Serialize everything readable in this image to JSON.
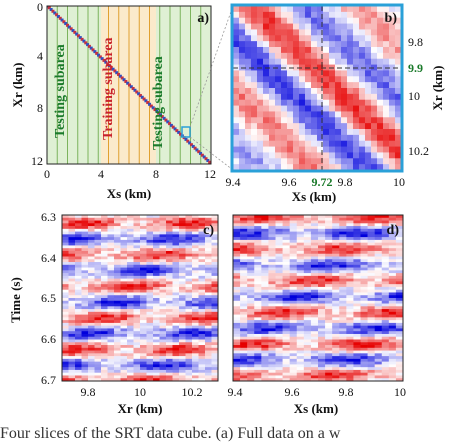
{
  "figure": {
    "caption": "Four slices of the SRT data cube. (a) Full data on a w"
  },
  "chart_data": [
    {
      "type": "heatmap",
      "panel_label": "a)",
      "xlabel": "Xs (km)",
      "ylabel": "Xr (km)",
      "xlim": [
        0,
        12
      ],
      "ylim": [
        0,
        12
      ],
      "xticks": [
        "0",
        "4",
        "8",
        "12"
      ],
      "yticks": [
        "0",
        "4",
        "8",
        "12"
      ],
      "subareas": [
        {
          "label": "Testing subarea",
          "color": "#1a7a2a"
        },
        {
          "label": "Training subarea",
          "color": "#c8202a"
        },
        {
          "label": "Testing subarea",
          "color": "#1a7a2a"
        }
      ]
    },
    {
      "type": "heatmap",
      "panel_label": "b)",
      "xlabel": "Xs (km)",
      "ylabel": "Xr (km)",
      "xlim": [
        9.4,
        10
      ],
      "ylim": [
        9.6,
        10.3
      ],
      "xticks": [
        "9.4",
        "9.6",
        "9.72",
        "9.8",
        "10"
      ],
      "yticks": [
        "9.8",
        "9.9",
        "10",
        "10.2"
      ],
      "highlight_x": "9.72",
      "highlight_y": "9.9"
    },
    {
      "type": "heatmap",
      "panel_label": "c)",
      "xlabel": "Xr (km)",
      "ylabel": "Time (s)",
      "xlim": [
        9.7,
        10.3
      ],
      "ylim": [
        6.7,
        6.3
      ],
      "xticks": [
        "9.8",
        "10",
        "10.2"
      ],
      "yticks": [
        "6.3",
        "6.4",
        "6.5",
        "6.6",
        "6.7"
      ]
    },
    {
      "type": "heatmap",
      "panel_label": "d)",
      "xlabel": "Xs (km)",
      "ylabel": "",
      "xlim": [
        9.4,
        10
      ],
      "ylim": [
        6.7,
        6.3
      ],
      "xticks": [
        "9.4",
        "9.6",
        "9.8",
        "10"
      ]
    }
  ]
}
